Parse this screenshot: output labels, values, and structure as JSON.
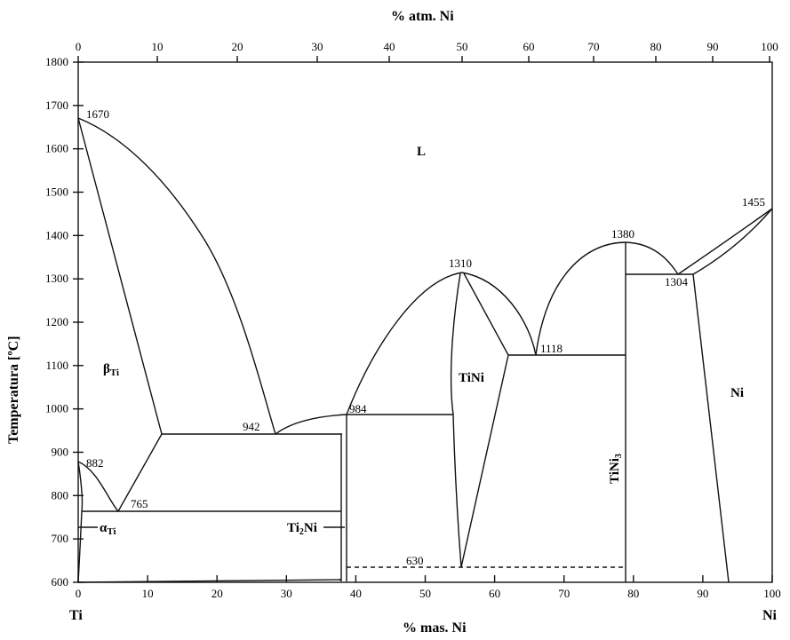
{
  "top_axis": {
    "label": "% atm. Ni",
    "ticks": [
      "0",
      "10",
      "20",
      "30",
      "40",
      "50",
      "60",
      "70",
      "80",
      "90",
      "100"
    ]
  },
  "bottom_axis": {
    "label": "% mas. Ni",
    "ticks": [
      "0",
      "10",
      "20",
      "30",
      "40",
      "50",
      "60",
      "70",
      "80",
      "90",
      "100"
    ],
    "left_end": "Ti",
    "right_end": "Ni"
  },
  "y_axis": {
    "label": "Temperatura [ºC]",
    "ticks": [
      "1800",
      "1700",
      "1600",
      "1500",
      "1400",
      "1300",
      "1200",
      "1100",
      "1000",
      "900",
      "800",
      "700",
      "600"
    ]
  },
  "phases": {
    "liquid": "L",
    "beta": "β",
    "beta_sub": "Ti",
    "alpha": "α",
    "alpha_sub": "Ti",
    "ti2ni_a": "Ti",
    "ti2ni_sub": "2",
    "ti2ni_b": "Ni",
    "tini": "TiNi",
    "tini3_a": "TiNi",
    "tini3_sub": "3",
    "ni": "Ni"
  },
  "temperatures": {
    "t1670": "1670",
    "t882": "882",
    "t765": "765",
    "t942": "942",
    "t984": "984",
    "t1310": "1310",
    "t1118": "1118",
    "t1380": "1380",
    "t1304": "1304",
    "t1455": "1455",
    "t630": "630"
  }
}
